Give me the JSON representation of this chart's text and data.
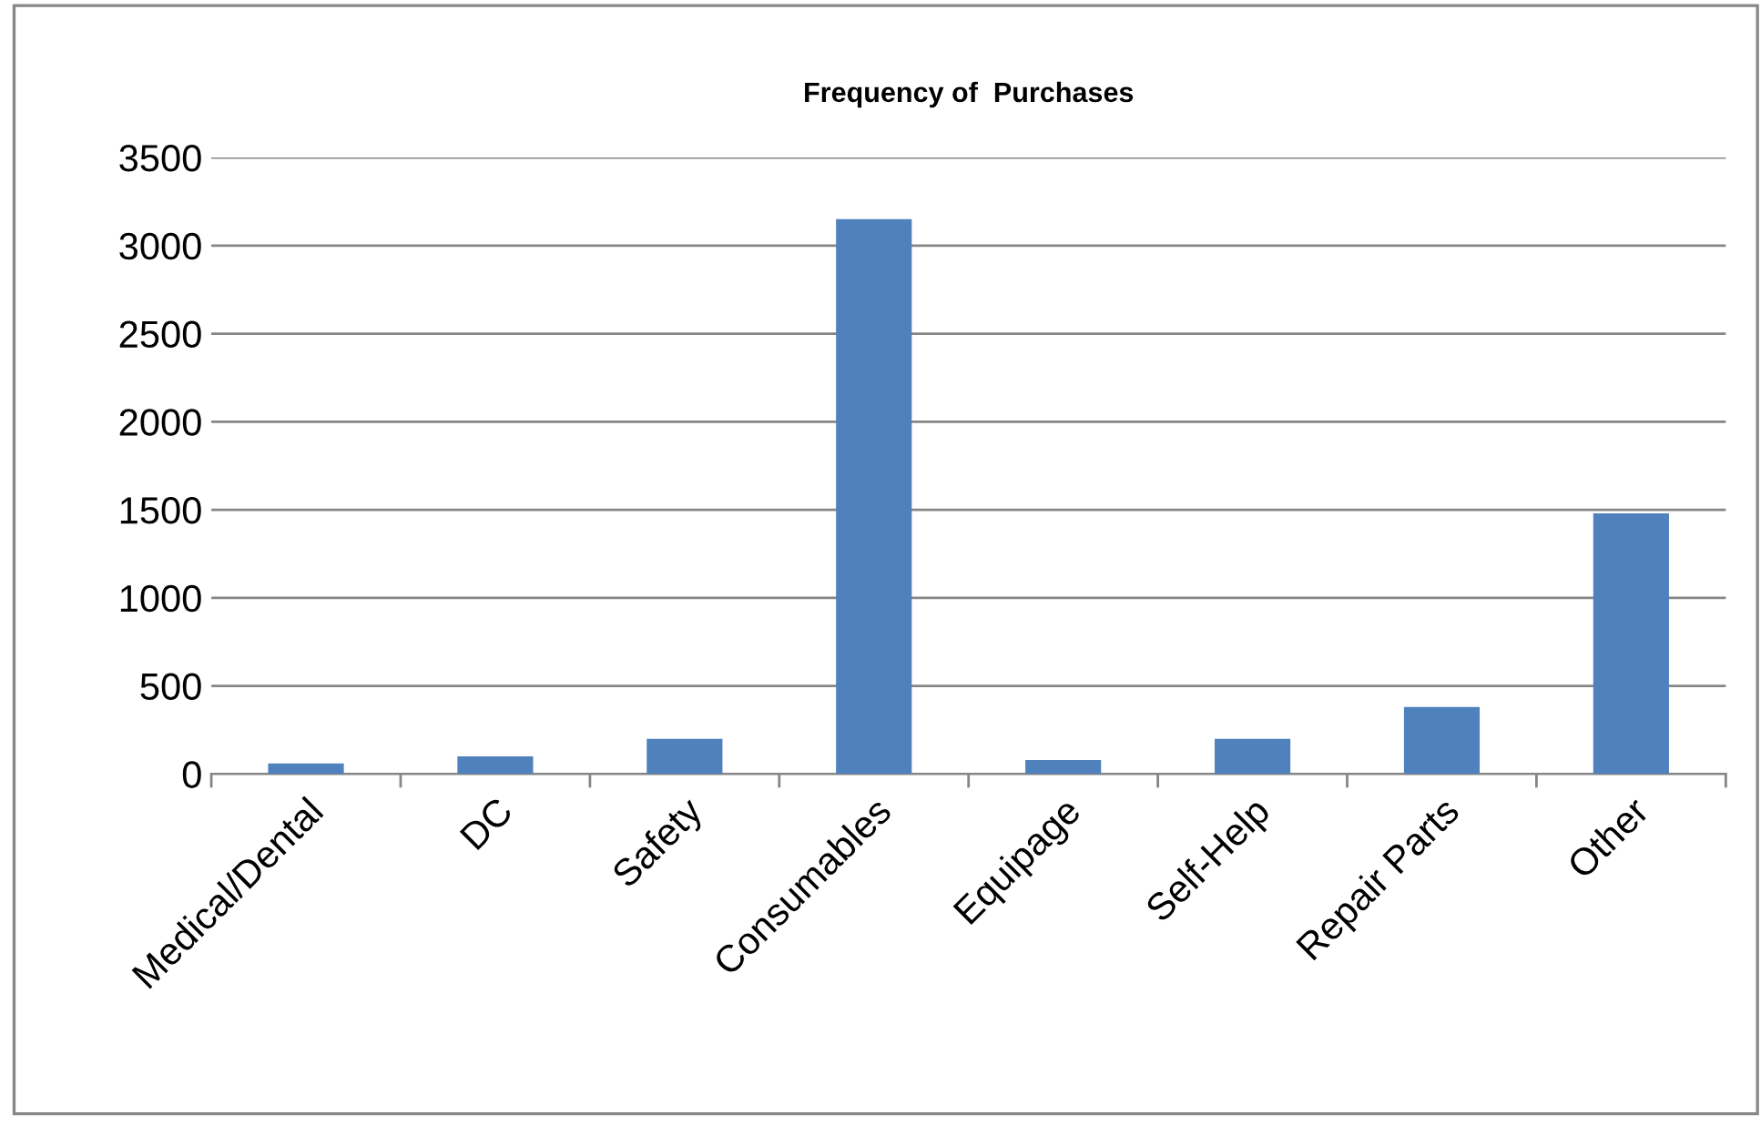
{
  "chart_data": {
    "type": "bar",
    "title": "Frequency of  Purchases",
    "categories": [
      "Medical/Dental",
      "DC",
      "Safety",
      "Consumables",
      "Equipage",
      "Self-Help",
      "Repair Parts",
      "Other"
    ],
    "values": [
      60,
      100,
      200,
      3150,
      80,
      200,
      380,
      1480
    ],
    "color": "#4f81bd",
    "ylim": [
      0,
      3500
    ],
    "yticks": [
      0,
      500,
      1000,
      1500,
      2000,
      2500,
      3000,
      3500
    ],
    "grid": "y",
    "legend": false
  }
}
